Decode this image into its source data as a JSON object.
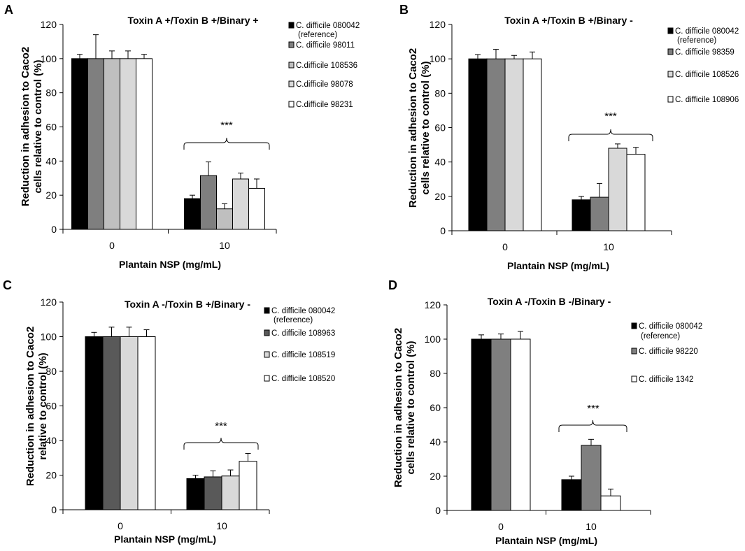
{
  "colors": {
    "black": "#000000",
    "dark_gray": "#7f7f7f",
    "slate": "#595959",
    "mid_gray": "#bfbfbf",
    "light_gray": "#d9d9d9",
    "white": "#ffffff"
  },
  "chart_data": [
    {
      "type": "bar",
      "panel": "A",
      "title": "Toxin A +/Toxin B +/Binary +",
      "xlabel": "Plantain NSP (mg/mL)",
      "ylabel": "Reduction in adhesion to Caco2 cells relative to control (%)",
      "ylim": [
        0,
        120
      ],
      "yticks": [
        "0",
        "20",
        "40",
        "60",
        "80",
        "100",
        "120"
      ],
      "categories": [
        "0",
        "10"
      ],
      "significance": "***",
      "series": [
        {
          "name": "C. difficile 080042 (reference)",
          "legend_lines": [
            "C. difficile 080042",
            "(reference)"
          ],
          "color": "#000000",
          "values": [
            100,
            18
          ],
          "errors": [
            2.5,
            2
          ]
        },
        {
          "name": "C. difficile 98011",
          "legend_lines": [
            "C. difficile 98011"
          ],
          "color": "#7f7f7f",
          "values": [
            100,
            31.5
          ],
          "errors": [
            14,
            8
          ]
        },
        {
          "name": "C.difficile 108536",
          "legend_lines": [
            "C.difficile 108536"
          ],
          "color": "#bfbfbf",
          "values": [
            100,
            12
          ],
          "errors": [
            4.5,
            3
          ]
        },
        {
          "name": "C.difficile 98078",
          "legend_lines": [
            "C.difficile 98078"
          ],
          "color": "#d9d9d9",
          "values": [
            100,
            29.5
          ],
          "errors": [
            4.5,
            3.5
          ]
        },
        {
          "name": "C.difficile 98231",
          "legend_lines": [
            "C.difficile 98231"
          ],
          "color": "#ffffff",
          "values": [
            100,
            24
          ],
          "errors": [
            2.5,
            5.5
          ]
        }
      ]
    },
    {
      "type": "bar",
      "panel": "B",
      "title": "Toxin A +/Toxin B +/Binary  -",
      "xlabel": "Plantain NSP (mg/mL)",
      "ylabel": "Reduction in adhesion to Caco2 cells relative to control (%)",
      "ylim": [
        0,
        120
      ],
      "yticks": [
        "0",
        "20",
        "40",
        "60",
        "80",
        "100",
        "120"
      ],
      "categories": [
        "0",
        "10"
      ],
      "significance": "***",
      "series": [
        {
          "name": "C. difficile 080042 (reference)",
          "legend_lines": [
            "C. difficile 080042",
            "(reference)"
          ],
          "color": "#000000",
          "values": [
            100,
            18
          ],
          "errors": [
            2.5,
            2
          ]
        },
        {
          "name": "C. difficile 98359",
          "legend_lines": [
            "C. difficile 98359"
          ],
          "color": "#7f7f7f",
          "values": [
            100,
            19.5
          ],
          "errors": [
            5.5,
            8
          ]
        },
        {
          "name": "C. difficile 108526",
          "legend_lines": [
            "C. difficile 108526"
          ],
          "color": "#d9d9d9",
          "values": [
            100,
            48
          ],
          "errors": [
            2,
            2.5
          ]
        },
        {
          "name": "C. difficile 108906",
          "legend_lines": [
            "C. difficile 108906"
          ],
          "color": "#ffffff",
          "values": [
            100,
            44.5
          ],
          "errors": [
            4,
            4
          ]
        }
      ]
    },
    {
      "type": "bar",
      "panel": "C",
      "title": "Toxin A -/Toxin B +/Binary  -",
      "xlabel": "Plantain NSP (mg/mL)",
      "ylabel": "Reduction in adhesion to Caco2 relative to control (%)",
      "ylim": [
        0,
        120
      ],
      "yticks": [
        "0",
        "20",
        "40",
        "60",
        "80",
        "100",
        "120"
      ],
      "categories": [
        "0",
        "10"
      ],
      "significance": "***",
      "series": [
        {
          "name": "C. difficile 080042 (reference)",
          "legend_lines": [
            "C. difficile 080042",
            "(reference)"
          ],
          "color": "#000000",
          "values": [
            100,
            18
          ],
          "errors": [
            2.5,
            2
          ]
        },
        {
          "name": "C. difficile 108963",
          "legend_lines": [
            "C. difficile 108963"
          ],
          "color": "#595959",
          "values": [
            100,
            19
          ],
          "errors": [
            5.5,
            3.5
          ]
        },
        {
          "name": "C. difficile 108519",
          "legend_lines": [
            "C. difficile 108519"
          ],
          "color": "#d9d9d9",
          "values": [
            100,
            19.5
          ],
          "errors": [
            5.5,
            3.5
          ]
        },
        {
          "name": "C. difficile 108520",
          "legend_lines": [
            "C. difficile 108520"
          ],
          "color": "#ffffff",
          "values": [
            100,
            28
          ],
          "errors": [
            4,
            4.5
          ]
        }
      ]
    },
    {
      "type": "bar",
      "panel": "D",
      "title": "Toxin A -/Toxin B -/Binary  -",
      "xlabel": "Plantain NSP (mg/mL)",
      "ylabel": "Reduction in adhesion to Caco2 cells relative to control (%)",
      "ylim": [
        0,
        120
      ],
      "yticks": [
        "0",
        "20",
        "40",
        "60",
        "80",
        "100",
        "120"
      ],
      "categories": [
        "0",
        "10"
      ],
      "significance": "***",
      "series": [
        {
          "name": "C. difficile 080042 (reference)",
          "legend_lines": [
            "C. difficile 080042",
            "(reference)"
          ],
          "color": "#000000",
          "values": [
            100,
            18
          ],
          "errors": [
            2.5,
            2
          ]
        },
        {
          "name": "C. difficile 98220",
          "legend_lines": [
            "C. difficile 98220"
          ],
          "color": "#7f7f7f",
          "values": [
            100,
            38
          ],
          "errors": [
            3,
            3.5
          ]
        },
        {
          "name": "C. difficile 1342",
          "legend_lines": [
            "C. difficile 1342"
          ],
          "color": "#ffffff",
          "values": [
            100,
            8.5
          ],
          "errors": [
            4.5,
            4
          ]
        }
      ]
    }
  ]
}
